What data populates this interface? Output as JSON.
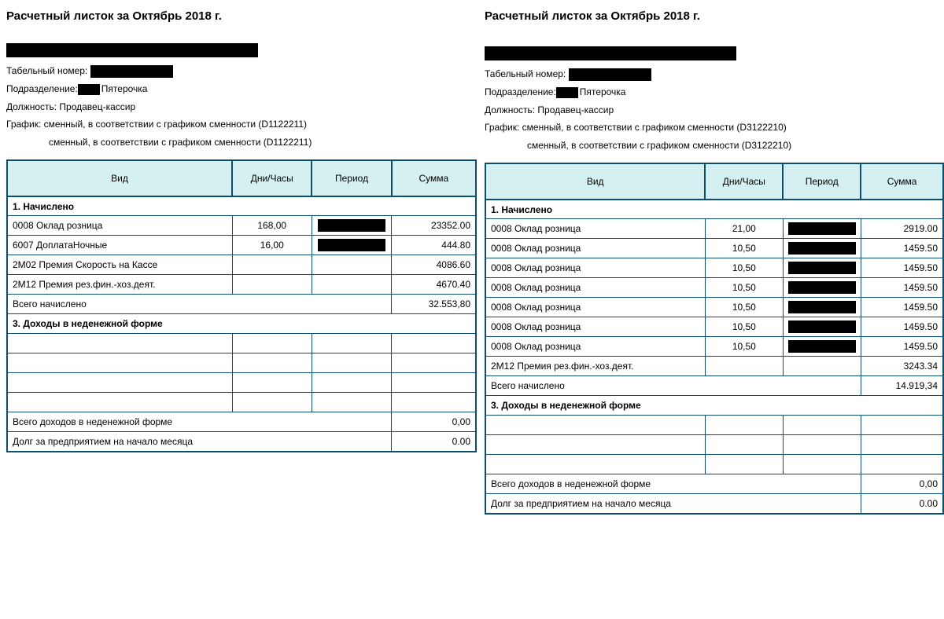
{
  "colors": {
    "border": "#0a4f6e",
    "header_bg": "#d5f0f0",
    "text": "#000000",
    "redact": "#000000"
  },
  "labels": {
    "tab_no": "Табельный номер:",
    "division": "Подразделение:",
    "position": "Должность:",
    "schedule": "График:",
    "col_type": "Вид",
    "col_dayshours": "Дни/Часы",
    "col_period": "Период",
    "col_sum": "Сумма",
    "sec_accrued": "1. Начислено",
    "total_accrued": "Всего начислено",
    "sec_nonmonetary": "3. Доходы в неденежной форме",
    "total_nonmonetary": "Всего доходов в неденежной форме",
    "debt_start": "Долг за предприятием на начало месяца"
  },
  "left": {
    "title": "Расчетный листок за Октябрь 2018 г.",
    "division_suffix": "Пятерочка",
    "position": "Продавец-кассир",
    "schedule1": "сменный, в соответствии с графиком сменности (D1122211)",
    "schedule2": "сменный, в соответствии с графиком сменности (D1122211)",
    "accrued_rows": [
      {
        "name": "0008 Оклад розница",
        "dh": "168,00",
        "period_redacted": true,
        "sum": "23352.00"
      },
      {
        "name": "6007 ДоплатаНочные",
        "dh": "16,00",
        "period_redacted": true,
        "sum": "444.80"
      },
      {
        "name": "2M02 Премия Скорость на Кассе",
        "dh": "",
        "period_redacted": false,
        "sum": "4086.60"
      },
      {
        "name": "2M12 Премия рез.фин.-хоз.деят.",
        "dh": "",
        "period_redacted": false,
        "sum": "4670.40"
      }
    ],
    "total_accrued": "32.553,80",
    "empty_nonmonetary_rows": 4,
    "total_nonmonetary": "0,00",
    "debt_start": "0.00"
  },
  "right": {
    "title": "Расчетный листок за Октябрь 2018 г.",
    "division_suffix": "Пятерочка",
    "position": "Продавец-кассир",
    "schedule1": "сменный, в соответствии с графиком сменности (D3122210)",
    "schedule2": "сменный, в соответствии с графиком сменности (D3122210)",
    "accrued_rows": [
      {
        "name": "0008 Оклад розница",
        "dh": "21,00",
        "period_redacted": true,
        "sum": "2919.00"
      },
      {
        "name": "0008 Оклад розница",
        "dh": "10,50",
        "period_redacted": true,
        "sum": "1459.50"
      },
      {
        "name": "0008 Оклад розница",
        "dh": "10,50",
        "period_redacted": true,
        "sum": "1459.50"
      },
      {
        "name": "0008 Оклад розница",
        "dh": "10,50",
        "period_redacted": true,
        "sum": "1459.50"
      },
      {
        "name": "0008 Оклад розница",
        "dh": "10,50",
        "period_redacted": true,
        "sum": "1459.50"
      },
      {
        "name": "0008 Оклад розница",
        "dh": "10,50",
        "period_redacted": true,
        "sum": "1459.50"
      },
      {
        "name": "0008 Оклад розница",
        "dh": "10,50",
        "period_redacted": true,
        "sum": "1459.50"
      },
      {
        "name": "2M12 Премия рез.фин.-хоз.деят.",
        "dh": "",
        "period_redacted": false,
        "sum": "3243.34"
      }
    ],
    "total_accrued": "14.919,34",
    "empty_nonmonetary_rows": 3,
    "total_nonmonetary": "0,00",
    "debt_start": "0.00"
  }
}
